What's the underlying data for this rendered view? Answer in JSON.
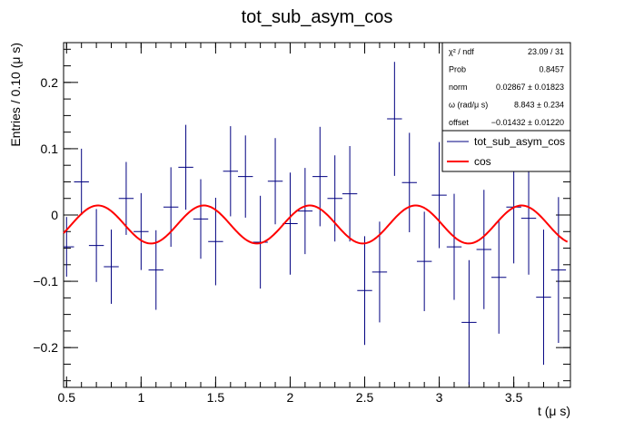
{
  "chart_data": {
    "type": "scatter",
    "title": "tot_sub_asym_cos",
    "xlabel": "t (μ s)",
    "ylabel": "Entries / 0.10 (μ s)",
    "xlim": [
      0.48,
      3.88
    ],
    "ylim": [
      -0.26,
      0.26
    ],
    "xticks": [
      0.5,
      1,
      1.5,
      2,
      2.5,
      3,
      3.5
    ],
    "xtick_labels": [
      "0.5",
      "1",
      "1.5",
      "2",
      "2.5",
      "3",
      "3.5"
    ],
    "yticks": [
      -0.2,
      -0.1,
      0,
      0.1,
      0.2
    ],
    "ytick_labels": [
      "−0.2",
      "−0.1",
      "0",
      "0.1",
      "0.2"
    ],
    "bin_width": 0.1,
    "series": [
      {
        "name": "tot_sub_asym_cos",
        "color": "#000080",
        "x": [
          0.5,
          0.6,
          0.7,
          0.8,
          0.9,
          1.0,
          1.1,
          1.2,
          1.3,
          1.4,
          1.5,
          1.6,
          1.7,
          1.8,
          1.9,
          2.0,
          2.1,
          2.2,
          2.3,
          2.4,
          2.5,
          2.6,
          2.7,
          2.8,
          2.9,
          3.0,
          3.1,
          3.2,
          3.3,
          3.4,
          3.5,
          3.6,
          3.7,
          3.8,
          3.9
        ],
        "y": [
          -0.048,
          0.05,
          -0.046,
          -0.078,
          0.025,
          -0.025,
          -0.083,
          0.012,
          0.072,
          -0.006,
          -0.04,
          0.066,
          0.058,
          -0.041,
          0.051,
          -0.013,
          0.006,
          0.058,
          0.025,
          0.032,
          -0.114,
          -0.086,
          0.145,
          0.049,
          -0.07,
          0.03,
          -0.048,
          -0.162,
          -0.052,
          -0.094,
          0.012,
          -0.005,
          -0.124,
          -0.083,
          null
        ],
        "yerr": [
          0.045,
          0.05,
          0.055,
          0.056,
          0.055,
          0.058,
          0.06,
          0.06,
          0.064,
          0.06,
          0.066,
          0.068,
          0.062,
          0.07,
          0.065,
          0.077,
          0.065,
          0.075,
          0.065,
          0.072,
          0.082,
          0.076,
          0.086,
          0.075,
          0.075,
          0.08,
          0.08,
          0.094,
          0.09,
          0.085,
          0.085,
          0.085,
          0.102,
          0.11,
          null
        ]
      }
    ],
    "fit": {
      "name": "cos",
      "color": "#ff0000",
      "norm": 0.02867,
      "omega": 8.843,
      "offset": -0.01432
    },
    "legend": {
      "position": "top-right",
      "entries": [
        {
          "label": "tot_sub_asym_cos",
          "color": "#000080",
          "kind": "line"
        },
        {
          "label": "cos",
          "color": "#ff0000",
          "kind": "line"
        }
      ]
    },
    "stats": [
      {
        "label": "χ² / ndf",
        "value": "23.09 / 31"
      },
      {
        "label": "Prob",
        "value": "0.8457"
      },
      {
        "label": "norm",
        "value": "0.02867 ± 0.01823"
      },
      {
        "label": "ω (rad/μ s)",
        "value": "8.843 ± 0.234"
      },
      {
        "label": "offset",
        "value": "−0.01432 ± 0.01220"
      }
    ]
  }
}
